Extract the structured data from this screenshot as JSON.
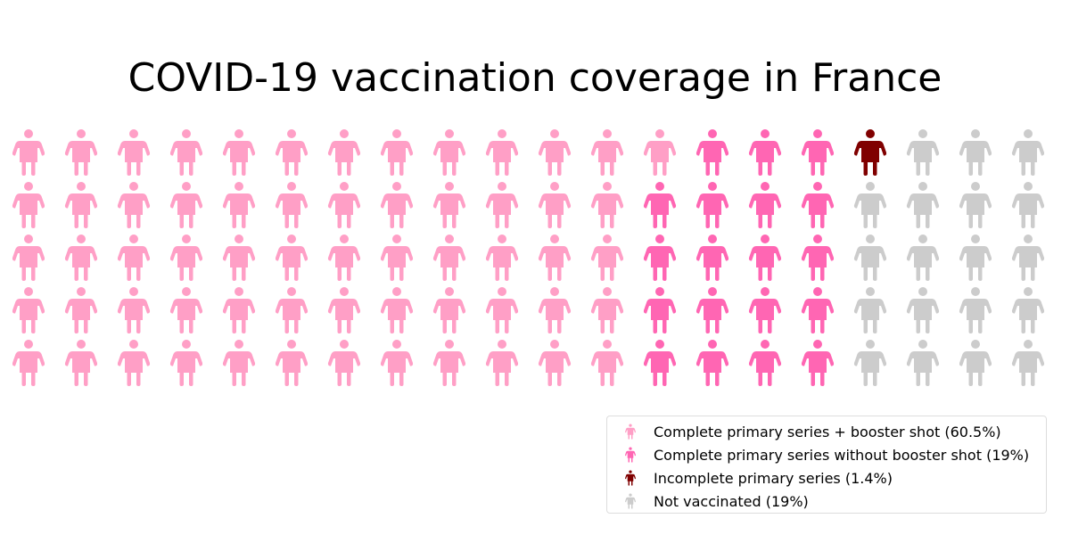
{
  "title": "COVID-19 vaccination coverage in France",
  "chart_data": {
    "type": "waffle",
    "rows": 5,
    "columns": 20,
    "icon": "person-icon",
    "fill_order": "column-major",
    "categories": [
      {
        "label": "Complete primary series + booster shot (60.5%)",
        "value": 60.5,
        "icons": 61,
        "color": "#ff9fc6"
      },
      {
        "label": "Complete primary series without booster shot (19%)",
        "value": 19,
        "icons": 19,
        "color": "#ff66b3"
      },
      {
        "label": "Incomplete primary series (1.4%)",
        "value": 1.4,
        "icons": 1,
        "color": "#800000"
      },
      {
        "label": "Not vaccinated (19%)",
        "value": 19,
        "icons": 19,
        "color": "#cccccc"
      }
    ],
    "legend_position": "bottom-right"
  }
}
